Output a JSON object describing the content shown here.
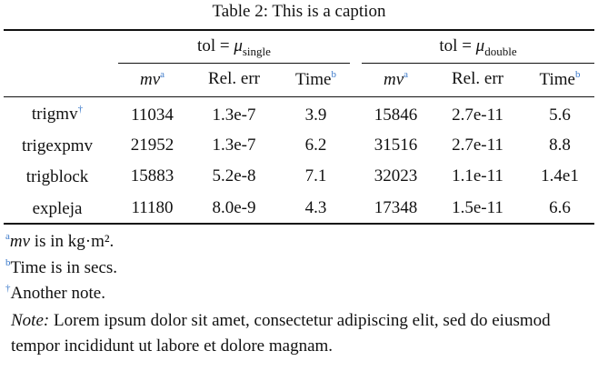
{
  "caption": "Table 2: This is a caption",
  "groups": {
    "left": {
      "prefix": "tol = ",
      "mu": "μ",
      "sub": "single"
    },
    "right": {
      "prefix": "tol = ",
      "mu": "μ",
      "sub": "double"
    }
  },
  "headers": {
    "mv": "mv",
    "mv_mark": "a",
    "relerr": "Rel. err",
    "time": "Time",
    "time_mark": "b"
  },
  "rows": [
    {
      "name": "trigmv",
      "mark": "†",
      "s_mv": "11034",
      "s_err": "1.3e-7",
      "s_time": "3.9",
      "d_mv": "15846",
      "d_err": "2.7e-11",
      "d_time": "5.6"
    },
    {
      "name": "trigexpmv",
      "mark": "",
      "s_mv": "21952",
      "s_err": "1.3e-7",
      "s_time": "6.2",
      "d_mv": "31516",
      "d_err": "2.7e-11",
      "d_time": "8.8"
    },
    {
      "name": "trigblock",
      "mark": "",
      "s_mv": "15883",
      "s_err": "5.2e-8",
      "s_time": "7.1",
      "d_mv": "32023",
      "d_err": "1.1e-11",
      "d_time": "1.4e1"
    },
    {
      "name": "expleja",
      "mark": "",
      "s_mv": "11180",
      "s_err": "8.0e-9",
      "s_time": "4.3",
      "d_mv": "17348",
      "d_err": "1.5e-11",
      "d_time": "6.6"
    }
  ],
  "notes": [
    {
      "mark": "a",
      "italic": "mv",
      "text": " is in kg·m²."
    },
    {
      "mark": "b",
      "italic": "",
      "text": "Time is in secs."
    },
    {
      "mark": "†",
      "italic": "",
      "text": "Another note."
    }
  ],
  "paragraph": {
    "label": "Note:",
    "text": " Lorem ipsum dolor sit amet, consectetur adipiscing elit, sed do eiusmod tempor incididunt ut labore et dolore magnam."
  },
  "colors": {
    "footnote_mark": "#3a78c9",
    "text": "#111111"
  }
}
